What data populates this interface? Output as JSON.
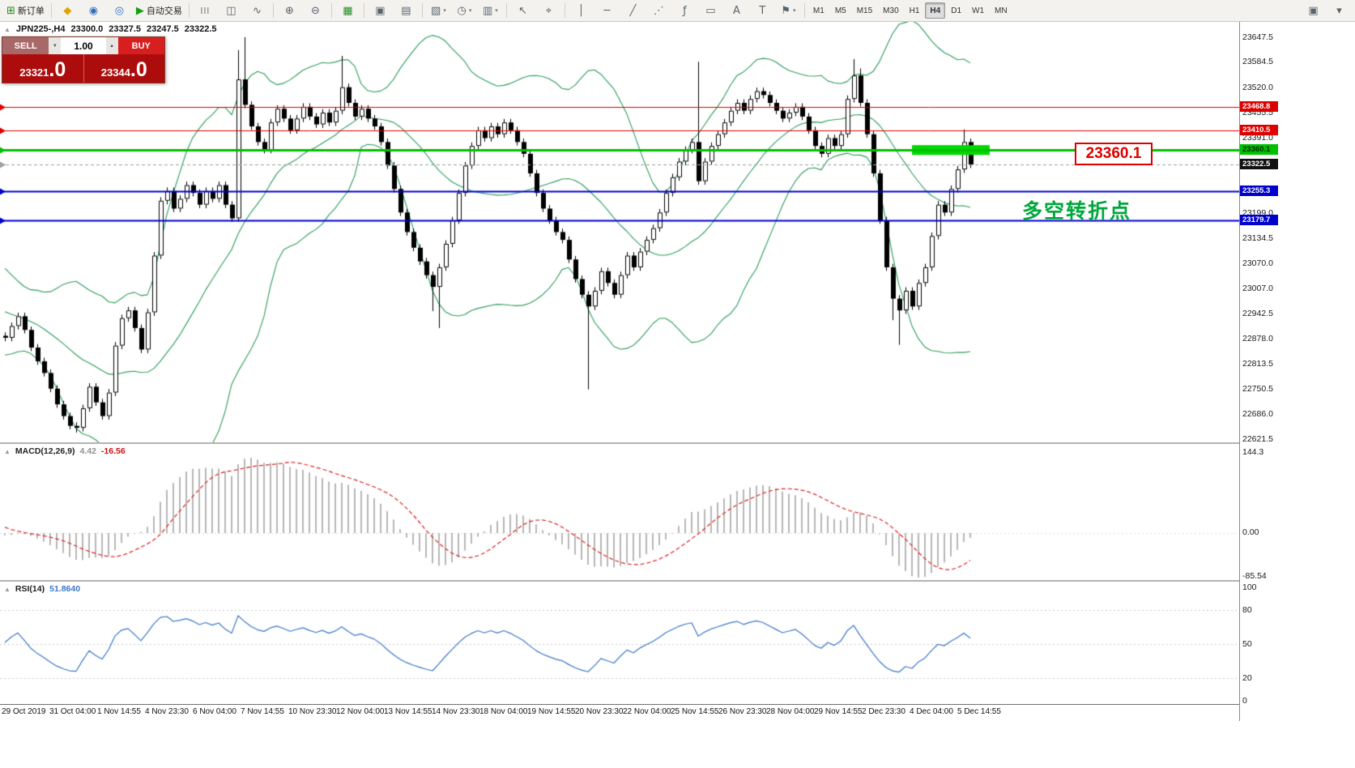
{
  "toolbar": {
    "items": [
      {
        "name": "new-order-button",
        "icon": "⊞",
        "icon_color": "#1f8f1f",
        "label": "新订单"
      },
      {
        "sep": true
      },
      {
        "name": "layouts-button",
        "icon": "◆",
        "icon_color": "#e0a400"
      },
      {
        "name": "market-watch-button",
        "icon": "◉",
        "icon_color": "#2d6fc2"
      },
      {
        "name": "data-window-button",
        "icon": "◎",
        "icon_color": "#2d6fc2"
      },
      {
        "name": "auto-trading-button",
        "icon": "▶",
        "icon_color": "#17a017",
        "label": "自动交易"
      },
      {
        "sep": true
      },
      {
        "name": "bar-chart-button",
        "icon": "|||"
      },
      {
        "name": "candlestick-chart-button",
        "icon": "◫"
      },
      {
        "name": "line-chart-button",
        "icon": "∿"
      },
      {
        "sep": true
      },
      {
        "name": "zoom-in-button",
        "icon": "⊕"
      },
      {
        "name": "zoom-out-button",
        "icon": "⊖"
      },
      {
        "sep": true
      },
      {
        "name": "indicators-button",
        "icon": "▦",
        "icon_color": "#1f8f1f"
      },
      {
        "sep": true
      },
      {
        "name": "tile-windows-button",
        "icon": "▣"
      },
      {
        "name": "cascade-windows-button",
        "icon": "▤"
      },
      {
        "sep": true
      },
      {
        "name": "new-chart-button",
        "icon": "▧",
        "dropdown": true
      },
      {
        "name": "profiles-button",
        "icon": "◷",
        "dropdown": true
      },
      {
        "name": "templates-button",
        "icon": "▥",
        "dropdown": true
      },
      {
        "sep": true
      },
      {
        "name": "cursor-button",
        "icon": "↖"
      },
      {
        "name": "crosshair-button",
        "icon": "⌖"
      },
      {
        "sep": true
      },
      {
        "name": "vertical-line-button",
        "icon": "│"
      },
      {
        "name": "horizontal-line-button",
        "icon": "─"
      },
      {
        "name": "trendline-button",
        "icon": "╱"
      },
      {
        "name": "channel-button",
        "icon": "⋰"
      },
      {
        "name": "fibonacci-button",
        "icon": "ƒ"
      },
      {
        "name": "shapes-button",
        "icon": "▭"
      },
      {
        "name": "text-button",
        "icon": "A"
      },
      {
        "name": "text-label-button",
        "icon": "T"
      },
      {
        "name": "arrows-button",
        "icon": "⚑",
        "dropdown": true
      },
      {
        "sep": true
      }
    ],
    "timeframes": {
      "list": [
        "M1",
        "M5",
        "M15",
        "M30",
        "H1",
        "H4",
        "D1",
        "W1",
        "MN"
      ],
      "active": "H4"
    },
    "right_items": [
      {
        "name": "toolbar-settings-button",
        "icon": "▣"
      },
      {
        "name": "toolbar-more-button",
        "icon": "▾"
      }
    ]
  },
  "chart": {
    "symbol_info": {
      "collapse_icon": "▲",
      "symbol": "JPN225-,H4",
      "open": "23300.0",
      "high": "23327.5",
      "low": "23247.5",
      "close": "23322.5"
    },
    "trade_panel": {
      "sell_label": "SELL",
      "buy_label": "BUY",
      "volume": "1.00",
      "spin_down_icon": "▼",
      "spin_up_icon": "▲",
      "sell_price_main": "23321",
      "sell_price_big": ".0",
      "buy_price_main": "23344",
      "buy_price_big": ".0"
    },
    "price_range": {
      "max": 23660,
      "min": 22615
    },
    "axis_labels": [
      "23647.5",
      "23584.5",
      "23520.0",
      "23455.5",
      "23391.0",
      "23199.0",
      "23134.5",
      "23070.0",
      "23007.0",
      "22942.5",
      "22878.0",
      "22813.5",
      "22750.5",
      "22686.0",
      "22621.5"
    ],
    "price_tags": [
      {
        "value": "23468.8",
        "price": 23468.8,
        "color": "#dd0000"
      },
      {
        "value": "23410.5",
        "price": 23410.5,
        "color": "#dd0000"
      },
      {
        "value": "23360.1",
        "price": 23360.1,
        "color": "#00c000",
        "text_color": "#002b00"
      },
      {
        "value": "23322.5",
        "price": 23322.5,
        "color": "#111111"
      },
      {
        "value": "23255.3",
        "price": 23255.3,
        "color": "#0000cc"
      },
      {
        "value": "23179.7",
        "price": 23179.7,
        "color": "#0000cc"
      }
    ],
    "hlines": [
      {
        "price": 23468.8,
        "color": "#dd0000",
        "width": 1
      },
      {
        "price": 23410.5,
        "color": "#dd0000",
        "width": 1
      },
      {
        "price": 23360.1,
        "color": "#00c000",
        "width": 3
      },
      {
        "price": 23322.5,
        "color": "#a0a0a0",
        "width": 1,
        "dash": true
      },
      {
        "price": 23255.3,
        "color": "#0000cc",
        "width": 2
      },
      {
        "price": 23179.7,
        "color": "#0000cc",
        "width": 2
      }
    ],
    "annotations": {
      "green_rect": {
        "x1_index": 140,
        "x2_index": 152,
        "price_top": 23372,
        "price_bottom": 23347,
        "color": "#00d800"
      },
      "price_callout": {
        "text": "23360.1",
        "color": "#dd0000"
      },
      "cn_note": {
        "text": "多空转折点",
        "color": "#00a83c"
      }
    },
    "bollinger": {
      "period": 20,
      "deviation": 2,
      "color": "#2e9e5b"
    },
    "candle_colors": {
      "bull": "#ffffff",
      "bear": "#000000",
      "outline": "#000000"
    },
    "candles": {
      "warmup": 30,
      "closes": [
        22760,
        22780,
        22810,
        22840,
        22880,
        22920,
        22960,
        23000,
        23030,
        23050,
        23060,
        23050,
        23040,
        23020,
        23000,
        22980,
        23000,
        22990,
        22960,
        22940,
        22950,
        22930,
        22950,
        22920,
        22900,
        22890,
        22910,
        22880,
        22860,
        22885,
        22880,
        22910,
        22935,
        22900,
        22855,
        22820,
        22790,
        22750,
        22710,
        22680,
        22655,
        22650,
        22700,
        22755,
        22715,
        22680,
        22740,
        22860,
        22930,
        22950,
        22905,
        22850,
        22945,
        23090,
        23230,
        23255,
        23210,
        23235,
        23270,
        23250,
        23220,
        23255,
        23235,
        23270,
        23220,
        23185,
        23540,
        23475,
        23420,
        23380,
        23360,
        23430,
        23465,
        23440,
        23410,
        23440,
        23470,
        23445,
        23425,
        23455,
        23430,
        23460,
        23520,
        23480,
        23445,
        23465,
        23440,
        23420,
        23380,
        23320,
        23260,
        23200,
        23150,
        23110,
        23075,
        23040,
        23010,
        23060,
        23120,
        23180,
        23250,
        23320,
        23370,
        23410,
        23390,
        23420,
        23400,
        23430,
        23410,
        23380,
        23350,
        23300,
        23250,
        23210,
        23180,
        23150,
        23130,
        23080,
        23030,
        22990,
        22960,
        23000,
        23050,
        23020,
        22990,
        23040,
        23090,
        23060,
        23100,
        23130,
        23160,
        23200,
        23250,
        23290,
        23330,
        23360,
        23380,
        23280,
        23330,
        23370,
        23400,
        23430,
        23460,
        23480,
        23460,
        23490,
        23510,
        23500,
        23480,
        23460,
        23440,
        23455,
        23470,
        23445,
        23410,
        23370,
        23350,
        23390,
        23370,
        23400,
        23490,
        23550,
        23480,
        23400,
        23300,
        23180,
        23060,
        22980,
        22950,
        23000,
        22960,
        23020,
        23060,
        23140,
        23220,
        23200,
        23260,
        23310,
        23380,
        23322.5
      ],
      "wick_overrides": [
        {
          "i": 41,
          "low": 22638
        },
        {
          "i": 66,
          "high": 23615
        },
        {
          "i": 67,
          "high": 23648
        },
        {
          "i": 82,
          "high": 23600
        },
        {
          "i": 96,
          "low": 22948
        },
        {
          "i": 97,
          "low": 22905
        },
        {
          "i": 120,
          "low": 22748
        },
        {
          "i": 137,
          "high": 23585
        },
        {
          "i": 161,
          "high": 23592
        },
        {
          "i": 162,
          "high": 23568
        },
        {
          "i": 167,
          "low": 22925
        },
        {
          "i": 168,
          "low": 22862
        },
        {
          "i": 178,
          "high": 23412
        }
      ]
    }
  },
  "macd": {
    "collapse_icon": "▲",
    "label": "MACD(12,26,9)",
    "value_main": "4.42",
    "value_signal": "-16.56",
    "fast": 12,
    "slow": 26,
    "signal_period": 9,
    "axis": [
      "144.3",
      "0.00",
      "-85.54"
    ],
    "hist_color": "#b8b8b8",
    "signal_color": "#dd2222"
  },
  "rsi": {
    "collapse_icon": "▲",
    "label": "RSI(14)",
    "value": "51.8640",
    "period": 14,
    "axis": [
      "100",
      "80",
      "50",
      "20",
      "0"
    ],
    "levels": [
      80,
      50,
      20
    ],
    "color": "#3c78c8"
  },
  "time_axis": {
    "labels": [
      "29 Oct 2019",
      "31 Oct 04:00",
      "1 Nov 14:55",
      "4 Nov 23:30",
      "6 Nov 04:00",
      "7 Nov 14:55",
      "10 Nov 23:30",
      "12 Nov 04:00",
      "13 Nov 14:55",
      "14 Nov 23:30",
      "18 Nov 04:00",
      "19 Nov 14:55",
      "20 Nov 23:30",
      "22 Nov 04:00",
      "25 Nov 14:55",
      "26 Nov 23:30",
      "28 Nov 04:00",
      "29 Nov 14:55",
      "2 Dec 23:30",
      "4 Dec 04:00",
      "5 Dec 14:55"
    ]
  }
}
